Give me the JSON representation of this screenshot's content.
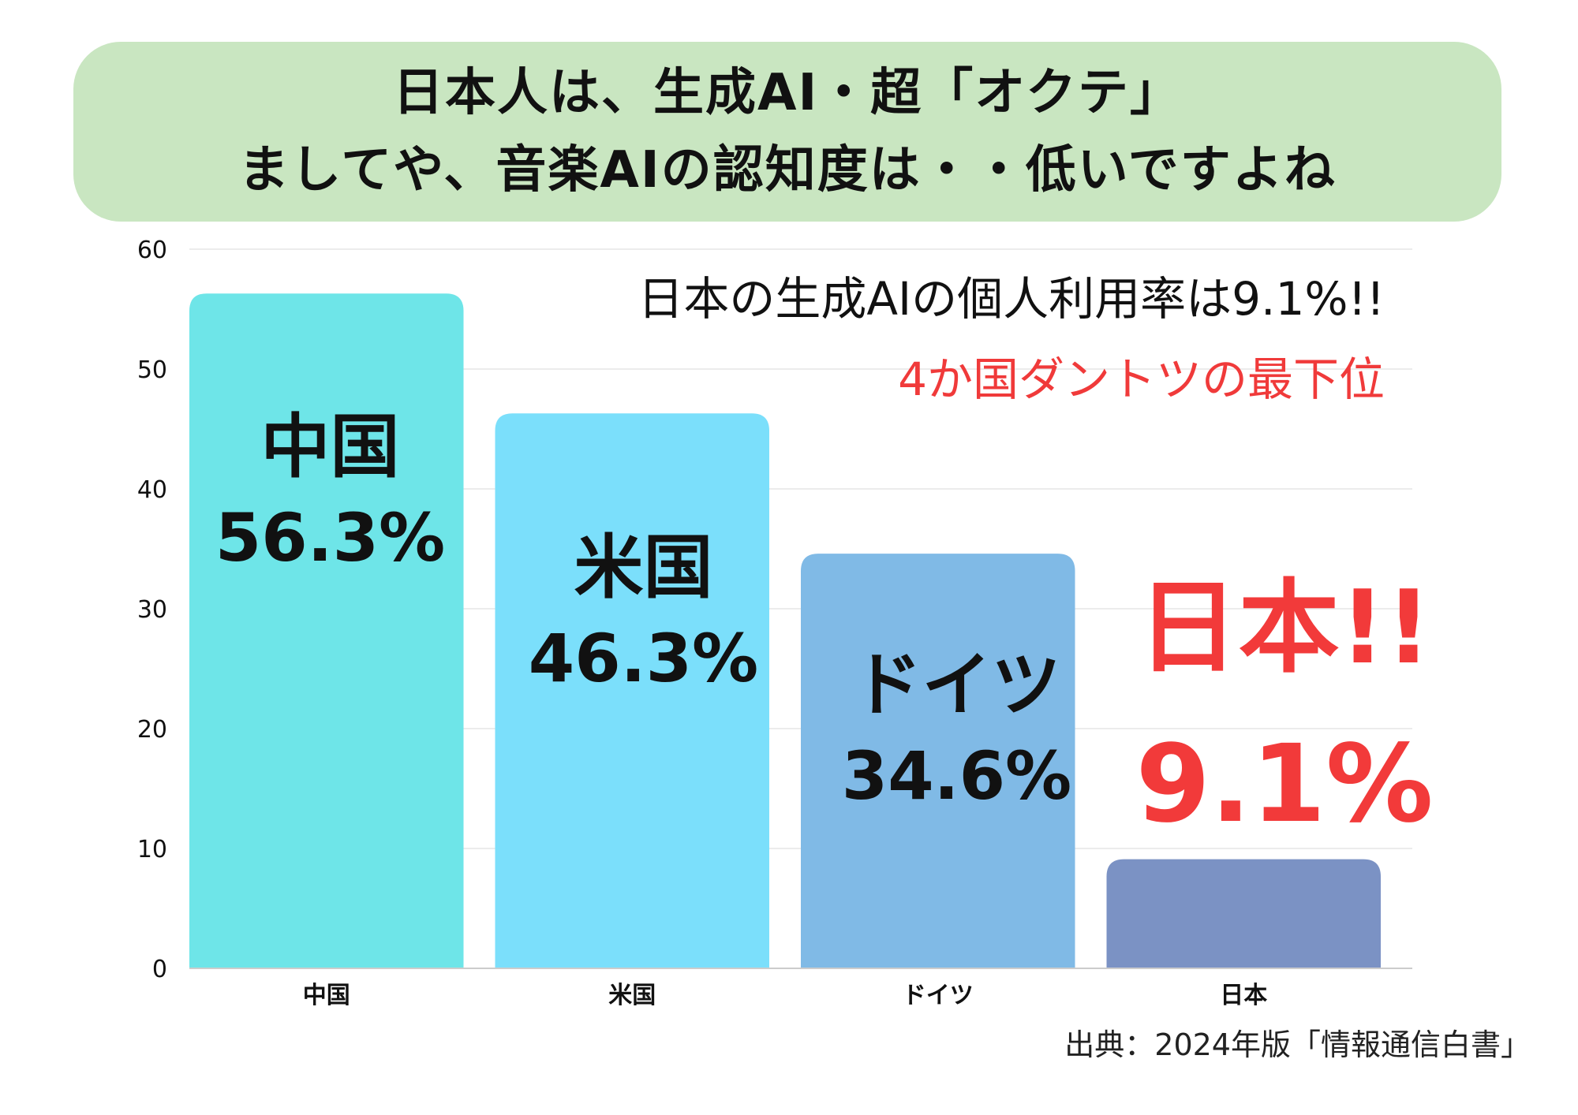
{
  "header": {
    "title_line1": "日本人は、生成AI・超「オクテ」",
    "title_line2": "ましてや、音楽AIの認知度は・・低いですよね"
  },
  "annotations": {
    "subtitle1": "日本の生成AIの個人利用率は9.1%!!",
    "subtitle2": "4か国ダントツの最下位"
  },
  "bar_labels": [
    {
      "name": "中国",
      "value_text": "56.3%"
    },
    {
      "name": "米国",
      "value_text": "46.3%"
    },
    {
      "name": "ドイツ",
      "value_text": "34.6%"
    },
    {
      "name": "日本!!",
      "value_text": "9.1%"
    }
  ],
  "source": "出典：2024年版「情報通信白書」",
  "colors": {
    "banner": "#c9e6c1",
    "highlight_red": "#f23a3a",
    "grid": "#e6e6e6",
    "axis": "#cccccc"
  },
  "chart_data": {
    "type": "bar",
    "categories": [
      "中国",
      "米国",
      "ドイツ",
      "日本"
    ],
    "values": [
      56.3,
      46.3,
      34.6,
      9.1
    ],
    "bar_colors": [
      "#6ee5e8",
      "#7bdffb",
      "#80bae6",
      "#7b92c4"
    ],
    "y_ticks": [
      "0",
      "10",
      "20",
      "30",
      "40",
      "50",
      "60"
    ],
    "ylim": [
      0,
      60
    ],
    "grid": true,
    "legend": "none"
  }
}
